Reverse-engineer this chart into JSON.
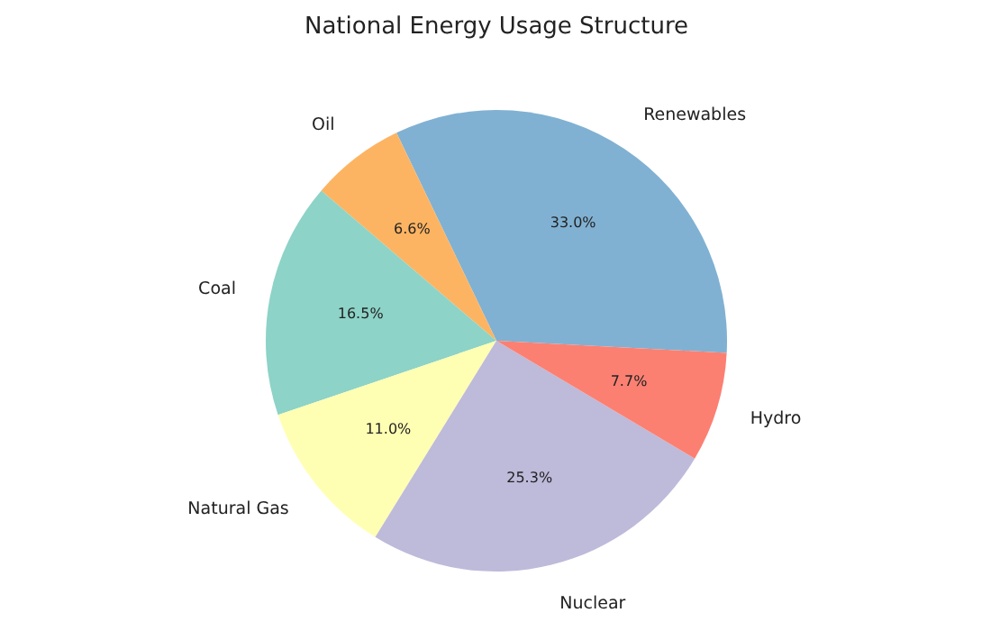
{
  "chart_data": {
    "type": "pie",
    "title": "National Energy Usage Structure",
    "categories": [
      "Renewables",
      "Oil",
      "Coal",
      "Natural Gas",
      "Nuclear",
      "Hydro"
    ],
    "values": [
      33.0,
      6.6,
      16.5,
      11.0,
      25.3,
      7.7
    ],
    "colors": [
      "#80b1d3",
      "#fdb462",
      "#8dd3c7",
      "#ffffb3",
      "#bebada",
      "#fb8072"
    ],
    "value_labels": [
      "33.0%",
      "6.6%",
      "16.5%",
      "11.0%",
      "25.3%",
      "7.7%"
    ]
  }
}
